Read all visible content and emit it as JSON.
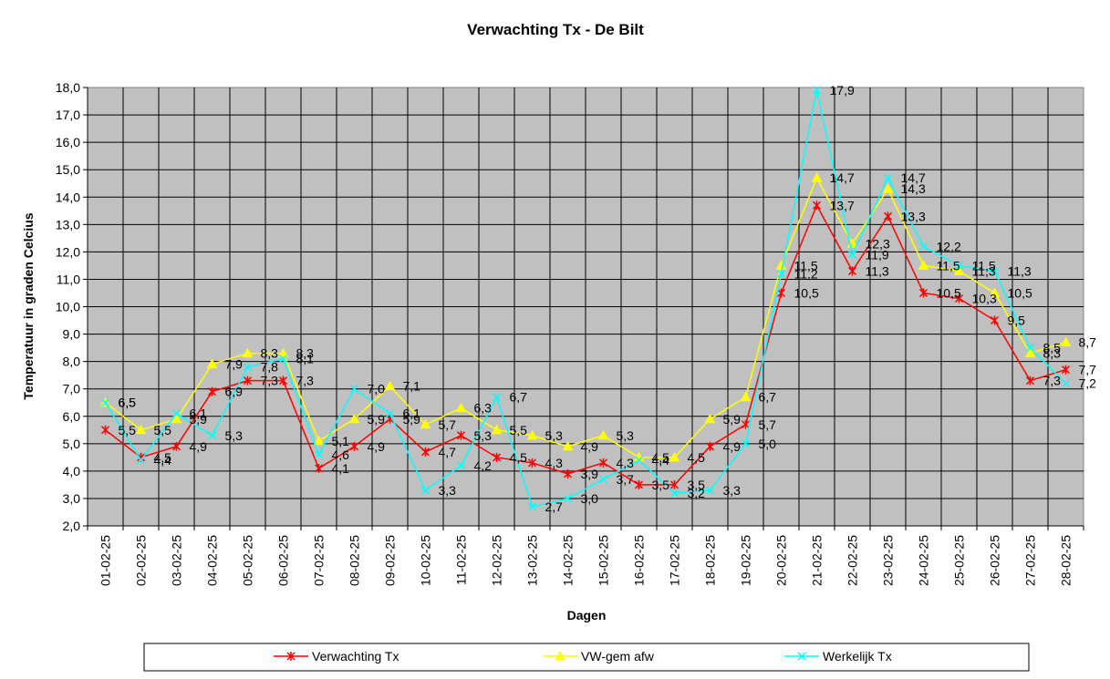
{
  "chart_data": {
    "type": "line",
    "title": "Verwachting Tx - De Bilt",
    "xlabel": "Dagen",
    "ylabel": "Temperatuur in graden Celcius",
    "ylim": [
      2.0,
      18.0
    ],
    "ystep": 1.0,
    "grid": true,
    "legend_position": "bottom",
    "plot_background": "#c0c0c0",
    "categories": [
      "01-02-25",
      "02-02-25",
      "03-02-25",
      "04-02-25",
      "05-02-25",
      "06-02-25",
      "07-02-25",
      "08-02-25",
      "09-02-25",
      "10-02-25",
      "11-02-25",
      "12-02-25",
      "13-02-25",
      "14-02-25",
      "15-02-25",
      "16-02-25",
      "17-02-25",
      "18-02-25",
      "19-02-25",
      "20-02-25",
      "21-02-25",
      "22-02-25",
      "23-02-25",
      "24-02-25",
      "25-02-25",
      "26-02-25",
      "27-02-25",
      "28-02-25"
    ],
    "series": [
      {
        "name": "Verwachting Tx",
        "color": "#ff0000",
        "marker": "star",
        "values": [
          5.5,
          4.5,
          4.9,
          6.9,
          7.3,
          7.3,
          4.1,
          4.9,
          5.9,
          4.7,
          5.3,
          4.5,
          4.3,
          3.9,
          4.3,
          3.5,
          3.5,
          4.9,
          5.7,
          10.5,
          13.7,
          11.3,
          13.3,
          10.5,
          10.3,
          9.5,
          7.3,
          7.7
        ],
        "labels": [
          "5,5",
          "4,5",
          "4,9",
          "6,9",
          "7,3",
          "7,3",
          "4,1",
          "4,9",
          "5,9",
          "4,7",
          "5,3",
          "4,5",
          "4,3",
          "3,9",
          "4,3",
          "3,5",
          "3,5",
          "4,9",
          "5,7",
          "10,5",
          "13,7",
          "11,3",
          "13,3",
          "10,5",
          "10,3",
          "9,5",
          "7,3",
          "7,7"
        ]
      },
      {
        "name": "VW-gem afw",
        "color": "#ffff00",
        "marker": "triangle",
        "values": [
          6.5,
          5.5,
          5.9,
          7.9,
          8.3,
          8.3,
          5.1,
          5.9,
          7.1,
          5.7,
          6.3,
          5.5,
          5.3,
          4.9,
          5.3,
          4.5,
          4.5,
          5.9,
          6.7,
          11.5,
          14.7,
          12.3,
          14.3,
          11.5,
          11.3,
          10.5,
          8.3,
          8.7
        ],
        "labels": [
          "6,5",
          "5,5",
          "5,9",
          "7,9",
          "8,3",
          "8,3",
          "5,1",
          "5,9",
          "7,1",
          "5,7",
          "6,3",
          "5,5",
          "5,3",
          "4,9",
          "5,3",
          "4,5",
          "4,5",
          "5,9",
          "6,7",
          "11,5",
          "14,7",
          "12,3",
          "14,3",
          "11,5",
          "11,3",
          "10,5",
          "8,3",
          "8,7"
        ]
      },
      {
        "name": "Werkelijk Tx",
        "color": "#00ffff",
        "marker": "x",
        "values": [
          6.5,
          4.4,
          6.1,
          5.3,
          7.8,
          8.1,
          4.6,
          7.0,
          6.1,
          3.3,
          4.2,
          6.7,
          2.7,
          3.0,
          3.7,
          4.4,
          3.2,
          3.3,
          5.0,
          11.2,
          17.9,
          11.9,
          14.7,
          12.2,
          11.5,
          11.3,
          8.5,
          7.2
        ],
        "labels": [
          "6,5",
          "4,4",
          "6,1",
          "5,3",
          "7,8",
          "8,1",
          "4,6",
          "7,0",
          "6,1",
          "3,3",
          "4,2",
          "6,7",
          "2,7",
          "3,0",
          "3,7",
          "4,4",
          "3,2",
          "3,3",
          "5,0",
          "11,2",
          "17,9",
          "11,9",
          "14,7",
          "12,2",
          "11,5",
          "11,3",
          "8,5",
          "7,2"
        ]
      }
    ]
  }
}
